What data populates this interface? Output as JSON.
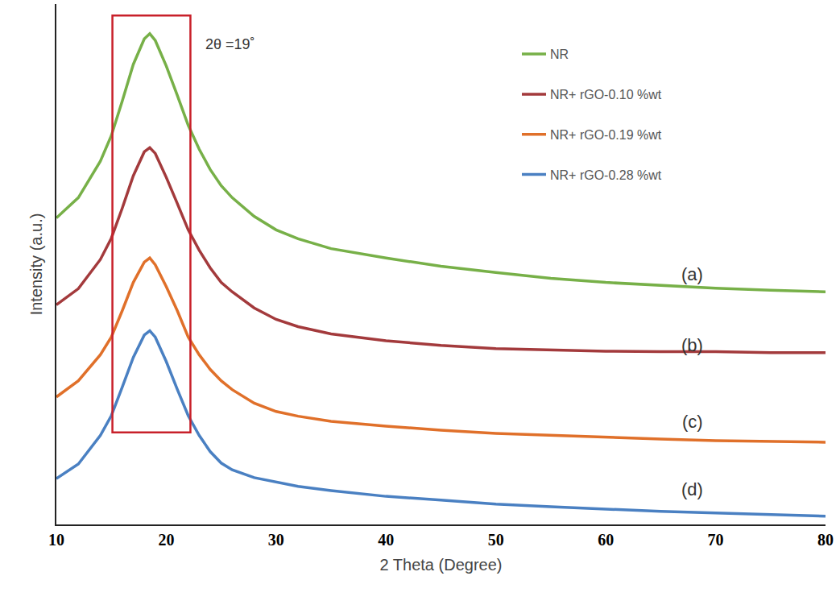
{
  "chart_data": {
    "type": "line",
    "x_label": "2 Theta (Degree)",
    "y_label": "Intensity (a.u.)",
    "x": [
      10,
      12,
      14,
      15,
      16,
      17,
      18,
      18.5,
      19,
      20,
      21,
      22,
      23,
      24,
      25,
      26,
      28,
      30,
      32,
      35,
      40,
      45,
      50,
      55,
      60,
      65,
      70,
      75,
      80
    ],
    "series": [
      {
        "name": "NR",
        "color": "#77b048",
        "values": [
          58.9,
          62.8,
          69.8,
          74.7,
          81.4,
          88.4,
          93.3,
          94.3,
          93.0,
          88.1,
          82.5,
          76.7,
          72.1,
          68.2,
          65.1,
          62.8,
          59.2,
          56.6,
          54.9,
          53.0,
          51.2,
          49.6,
          48.4,
          47.3,
          46.5,
          45.9,
          45.4,
          45.0,
          44.7
        ]
      },
      {
        "name": "NR+ rGO-0.10 %wt",
        "color": "#a33a3c",
        "values": [
          42.2,
          45.3,
          50.9,
          55.0,
          60.8,
          67.0,
          71.6,
          72.4,
          71.3,
          66.7,
          61.7,
          56.6,
          52.7,
          49.3,
          46.5,
          44.7,
          41.6,
          39.4,
          38.0,
          36.6,
          35.3,
          34.4,
          33.8,
          33.5,
          33.3,
          33.2,
          33.2,
          33.0,
          33.0
        ]
      },
      {
        "name": "NR+ rGO-0.19 %wt",
        "color": "#e0702a",
        "values": [
          24.5,
          27.6,
          32.6,
          36.0,
          41.1,
          46.5,
          50.4,
          51.2,
          49.9,
          45.7,
          41.1,
          36.0,
          32.6,
          29.8,
          27.6,
          25.9,
          23.3,
          21.7,
          20.8,
          19.8,
          18.9,
          18.1,
          17.5,
          17.1,
          16.7,
          16.4,
          16.1,
          16.0,
          15.8
        ]
      },
      {
        "name": "NR+ rGO-0.28 %wt",
        "color": "#4a80c2",
        "values": [
          8.8,
          11.6,
          17.1,
          20.9,
          26.4,
          32.1,
          36.4,
          37.2,
          36.0,
          31.3,
          26.0,
          20.9,
          17.1,
          14.0,
          11.8,
          10.5,
          9.0,
          8.1,
          7.3,
          6.5,
          5.4,
          4.7,
          3.9,
          3.4,
          2.9,
          2.5,
          2.2,
          1.9,
          1.6
        ]
      }
    ],
    "xlim": [
      10,
      80
    ],
    "xticks": [
      10,
      20,
      30,
      40,
      50,
      60,
      70,
      80
    ],
    "ylim": [
      0,
      100
    ],
    "tick_labels": "x",
    "grid": false,
    "legend": "upper right",
    "highlight": {
      "x0": 15.1,
      "x1": 22.2,
      "y0": 17.7,
      "y1": 97.8,
      "color": "#c8202a"
    },
    "annotations": [
      {
        "text": "2θ =19˚",
        "x": 23.4,
        "y": 92.2
      },
      {
        "text": "(a)",
        "x": 67.9,
        "y": 48.1
      },
      {
        "text": "(b)",
        "x": 67.9,
        "y": 34.4
      },
      {
        "text": "(c)",
        "x": 67.9,
        "y": 19.7
      },
      {
        "text": "(d)",
        "x": 67.9,
        "y": 6.7
      }
    ]
  }
}
